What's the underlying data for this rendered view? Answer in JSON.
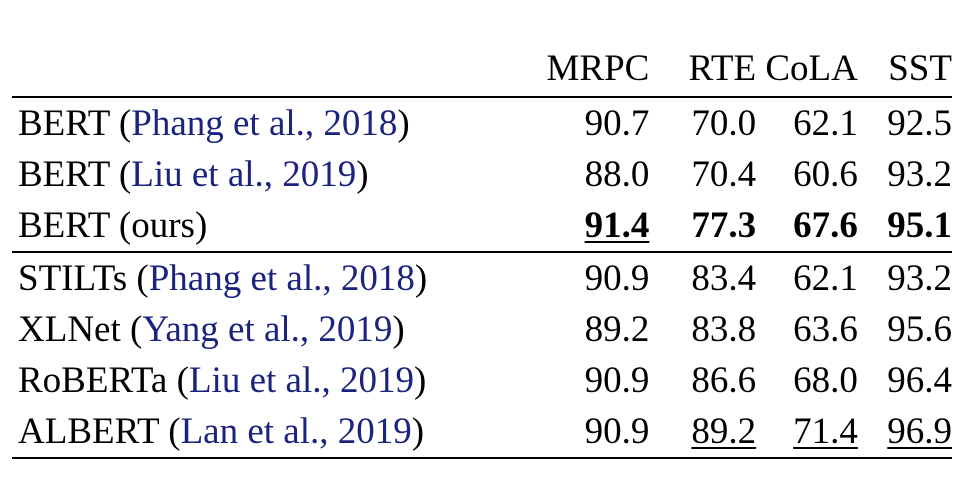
{
  "table": {
    "headers": [
      "",
      "MRPC",
      "RTE",
      "CoLA",
      "SST"
    ],
    "rows": [
      {
        "model": "BERT",
        "cite": "Phang et al., 2018",
        "values": [
          "90.7",
          "70.0",
          "62.1",
          "92.5"
        ]
      },
      {
        "model": "BERT",
        "cite": "Liu et al., 2019",
        "values": [
          "88.0",
          "70.4",
          "60.6",
          "93.2"
        ]
      },
      {
        "model": "BERT (ours)",
        "cite": "",
        "values": [
          "91.4",
          "77.3",
          "67.6",
          "95.1"
        ]
      },
      {
        "model": "STILTs",
        "cite": "Phang et al., 2018",
        "values": [
          "90.9",
          "83.4",
          "62.1",
          "93.2"
        ]
      },
      {
        "model": "XLNet",
        "cite": "Yang et al., 2019",
        "values": [
          "89.2",
          "83.8",
          "63.6",
          "95.6"
        ]
      },
      {
        "model": "RoBERTa",
        "cite": "Liu et al., 2019",
        "values": [
          "90.9",
          "86.6",
          "68.0",
          "96.4"
        ]
      },
      {
        "model": "ALBERT",
        "cite": "Lan et al., 2019",
        "values": [
          "90.9",
          "89.2",
          "71.4",
          "96.9"
        ]
      }
    ]
  },
  "colors": {
    "citation": "#1a237e",
    "text": "#000000"
  }
}
